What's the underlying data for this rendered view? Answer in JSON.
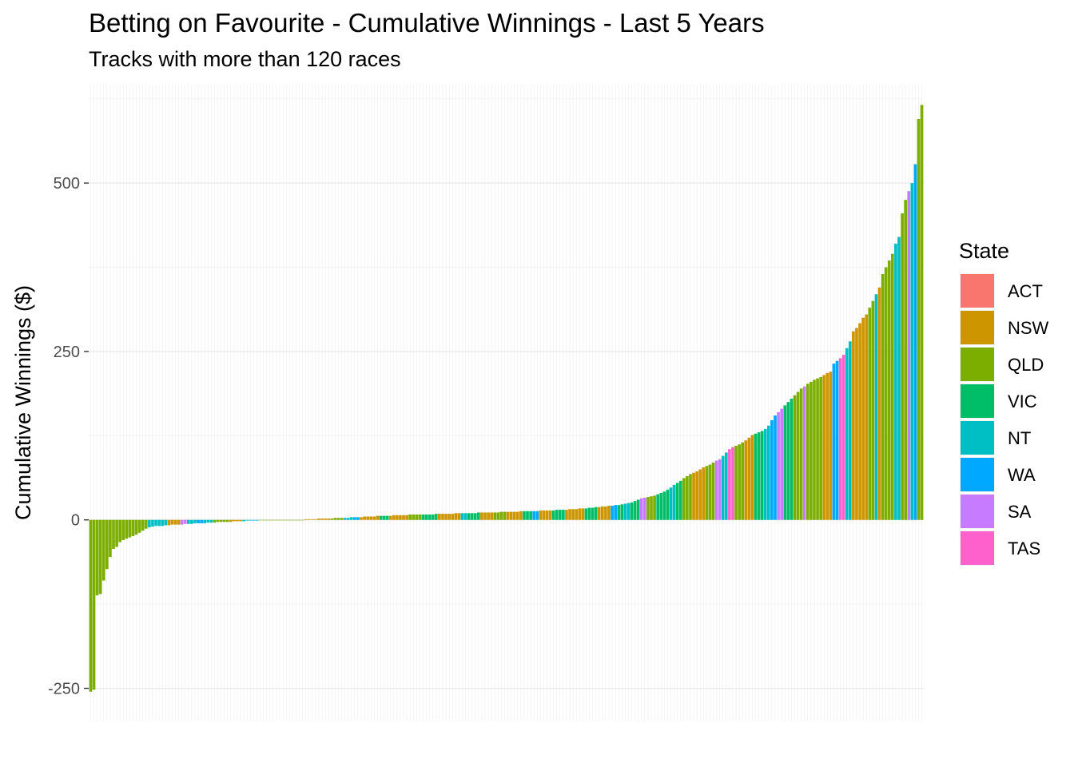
{
  "chart_data": {
    "type": "bar",
    "title": "Betting on Favourite - Cumulative Winnings - Last 5 Years",
    "subtitle": "Tracks with more than 120 races",
    "xlabel": "",
    "ylabel": "Cumulative Winnings ($)",
    "ylim": [
      -298,
      646
    ],
    "yticks": [
      -250,
      0,
      250,
      500
    ],
    "x_tick_labels": "none",
    "grid": "on",
    "legend": {
      "title": "State",
      "placement": "right"
    },
    "states": [
      {
        "name": "ACT",
        "color": "#F8766D"
      },
      {
        "name": "NSW",
        "color": "#CD9600"
      },
      {
        "name": "QLD",
        "color": "#7CAE00"
      },
      {
        "name": "VIC",
        "color": "#00BE67"
      },
      {
        "name": "NT",
        "color": "#00BFC4"
      },
      {
        "name": "WA",
        "color": "#00A9FF"
      },
      {
        "name": "SA",
        "color": "#C77CFF"
      },
      {
        "name": "TAS",
        "color": "#FF61CC"
      }
    ],
    "segments": [
      {
        "state": "QLD",
        "values": [
          -255,
          -252,
          -112,
          -110,
          -90,
          -73,
          -55,
          -43,
          -40,
          -33,
          -30,
          -28,
          -26,
          -24,
          -22,
          -19,
          -16,
          -13
        ]
      },
      {
        "state": "NT",
        "values": [
          -11,
          -10,
          -9,
          -9,
          -9,
          -8
        ]
      },
      {
        "state": "NSW",
        "values": [
          -8,
          -7,
          -7,
          -7
        ]
      },
      {
        "state": "SA",
        "values": [
          -7,
          -6
        ]
      },
      {
        "state": "NT",
        "values": [
          -6,
          -6,
          -5
        ]
      },
      {
        "state": "WA",
        "values": [
          -5,
          -5
        ]
      },
      {
        "state": "NT",
        "values": [
          -5,
          -4,
          -4
        ]
      },
      {
        "state": "QLD",
        "values": [
          -4,
          -3,
          -3,
          -3,
          -3
        ]
      },
      {
        "state": "NSW",
        "values": [
          -3,
          -2,
          -2,
          -2
        ]
      },
      {
        "state": "NT",
        "values": [
          -2,
          -1,
          -1
        ]
      },
      {
        "state": "WA",
        "values": [
          -1,
          -1
        ]
      },
      {
        "state": "QLD",
        "values": [
          0,
          0,
          0,
          0,
          0,
          0,
          0,
          0,
          0,
          0,
          0,
          0,
          0,
          0
        ]
      },
      {
        "state": "NSW",
        "values": [
          1,
          1,
          1,
          1,
          2,
          2,
          2,
          2
        ]
      },
      {
        "state": "QLD",
        "values": [
          2,
          3,
          3,
          3
        ]
      },
      {
        "state": "NT",
        "values": [
          3,
          3,
          4
        ]
      },
      {
        "state": "WA",
        "values": [
          4,
          4
        ]
      },
      {
        "state": "NSW",
        "values": [
          4,
          5,
          5,
          5,
          5,
          6
        ]
      },
      {
        "state": "VIC",
        "values": [
          6,
          6,
          6
        ]
      },
      {
        "state": "NSW",
        "values": [
          6,
          7,
          7,
          7,
          7,
          7
        ]
      },
      {
        "state": "QLD",
        "values": [
          8,
          8,
          8,
          8
        ]
      },
      {
        "state": "VIC",
        "values": [
          8,
          8,
          8,
          8,
          9
        ]
      },
      {
        "state": "NSW",
        "values": [
          9,
          9,
          9,
          9,
          9,
          10,
          10
        ]
      },
      {
        "state": "NT",
        "values": [
          10,
          10
        ]
      },
      {
        "state": "VIC",
        "values": [
          10,
          10,
          10,
          11
        ]
      },
      {
        "state": "NSW",
        "values": [
          11,
          11,
          11,
          11
        ]
      },
      {
        "state": "QLD",
        "values": [
          11,
          11,
          12,
          12
        ]
      },
      {
        "state": "NSW",
        "values": [
          12,
          12,
          12,
          12,
          13
        ]
      },
      {
        "state": "VIC",
        "values": [
          13,
          13,
          13
        ]
      },
      {
        "state": "WA",
        "values": [
          13,
          13
        ]
      },
      {
        "state": "NSW",
        "values": [
          14,
          14,
          14,
          14
        ]
      },
      {
        "state": "VIC",
        "values": [
          14,
          15,
          15,
          15
        ]
      },
      {
        "state": "NSW",
        "values": [
          15,
          16,
          16,
          16,
          17,
          17
        ]
      },
      {
        "state": "VIC",
        "values": [
          17,
          18,
          18,
          19
        ]
      },
      {
        "state": "NSW",
        "values": [
          19,
          20,
          20,
          21
        ]
      },
      {
        "state": "WA",
        "values": [
          21,
          22
        ]
      },
      {
        "state": "VIC",
        "values": [
          22,
          23
        ]
      },
      {
        "state": "NT",
        "values": [
          24,
          25
        ]
      },
      {
        "state": "VIC",
        "values": [
          26,
          28,
          30
        ]
      },
      {
        "state": "SA",
        "values": [
          32,
          33
        ]
      },
      {
        "state": "QLD",
        "values": [
          34,
          35,
          36
        ]
      },
      {
        "state": "VIC",
        "values": [
          38,
          40,
          42,
          45
        ]
      },
      {
        "state": "NT",
        "values": [
          48,
          52
        ]
      },
      {
        "state": "VIC",
        "values": [
          55,
          58
        ]
      },
      {
        "state": "QLD",
        "values": [
          62,
          65,
          68
        ]
      },
      {
        "state": "NSW",
        "values": [
          70,
          72,
          75,
          78
        ]
      },
      {
        "state": "QLD",
        "values": [
          80,
          82,
          85
        ]
      },
      {
        "state": "SA",
        "values": [
          88,
          90
        ]
      },
      {
        "state": "NT",
        "values": [
          95,
          100
        ]
      },
      {
        "state": "TAS",
        "values": [
          105,
          108
        ]
      },
      {
        "state": "QLD",
        "values": [
          110,
          112,
          115
        ]
      },
      {
        "state": "NSW",
        "values": [
          118,
          122,
          126
        ]
      },
      {
        "state": "VIC",
        "values": [
          128,
          130,
          132
        ]
      },
      {
        "state": "NT",
        "values": [
          135,
          140
        ]
      },
      {
        "state": "WA",
        "values": [
          148,
          155
        ]
      },
      {
        "state": "SA",
        "values": [
          160,
          165
        ]
      },
      {
        "state": "VIC",
        "values": [
          170,
          175,
          180
        ]
      },
      {
        "state": "QLD",
        "values": [
          185,
          190,
          195
        ]
      },
      {
        "state": "SA",
        "values": [
          198
        ]
      },
      {
        "state": "QLD",
        "values": [
          202,
          205,
          208,
          210,
          212
        ]
      },
      {
        "state": "NSW",
        "values": [
          215,
          218,
          220
        ]
      },
      {
        "state": "WA",
        "values": [
          232,
          236
        ]
      },
      {
        "state": "TAS",
        "values": [
          240,
          245
        ]
      },
      {
        "state": "NT",
        "values": [
          255,
          265
        ]
      },
      {
        "state": "NSW",
        "values": [
          280,
          285,
          292,
          300,
          305
        ]
      },
      {
        "state": "QLD",
        "values": [
          315,
          325
        ]
      },
      {
        "state": "NT",
        "values": [
          335
        ]
      },
      {
        "state": "NSW",
        "values": [
          345
        ]
      },
      {
        "state": "QLD",
        "values": [
          365,
          375,
          385,
          395
        ]
      },
      {
        "state": "NT",
        "values": [
          410,
          420
        ]
      },
      {
        "state": "QLD",
        "values": [
          455,
          475
        ]
      },
      {
        "state": "SA",
        "values": [
          488
        ]
      },
      {
        "state": "NT",
        "values": [
          500
        ]
      },
      {
        "state": "WA",
        "values": [
          528
        ]
      },
      {
        "state": "QLD",
        "values": [
          595,
          616
        ]
      }
    ]
  }
}
